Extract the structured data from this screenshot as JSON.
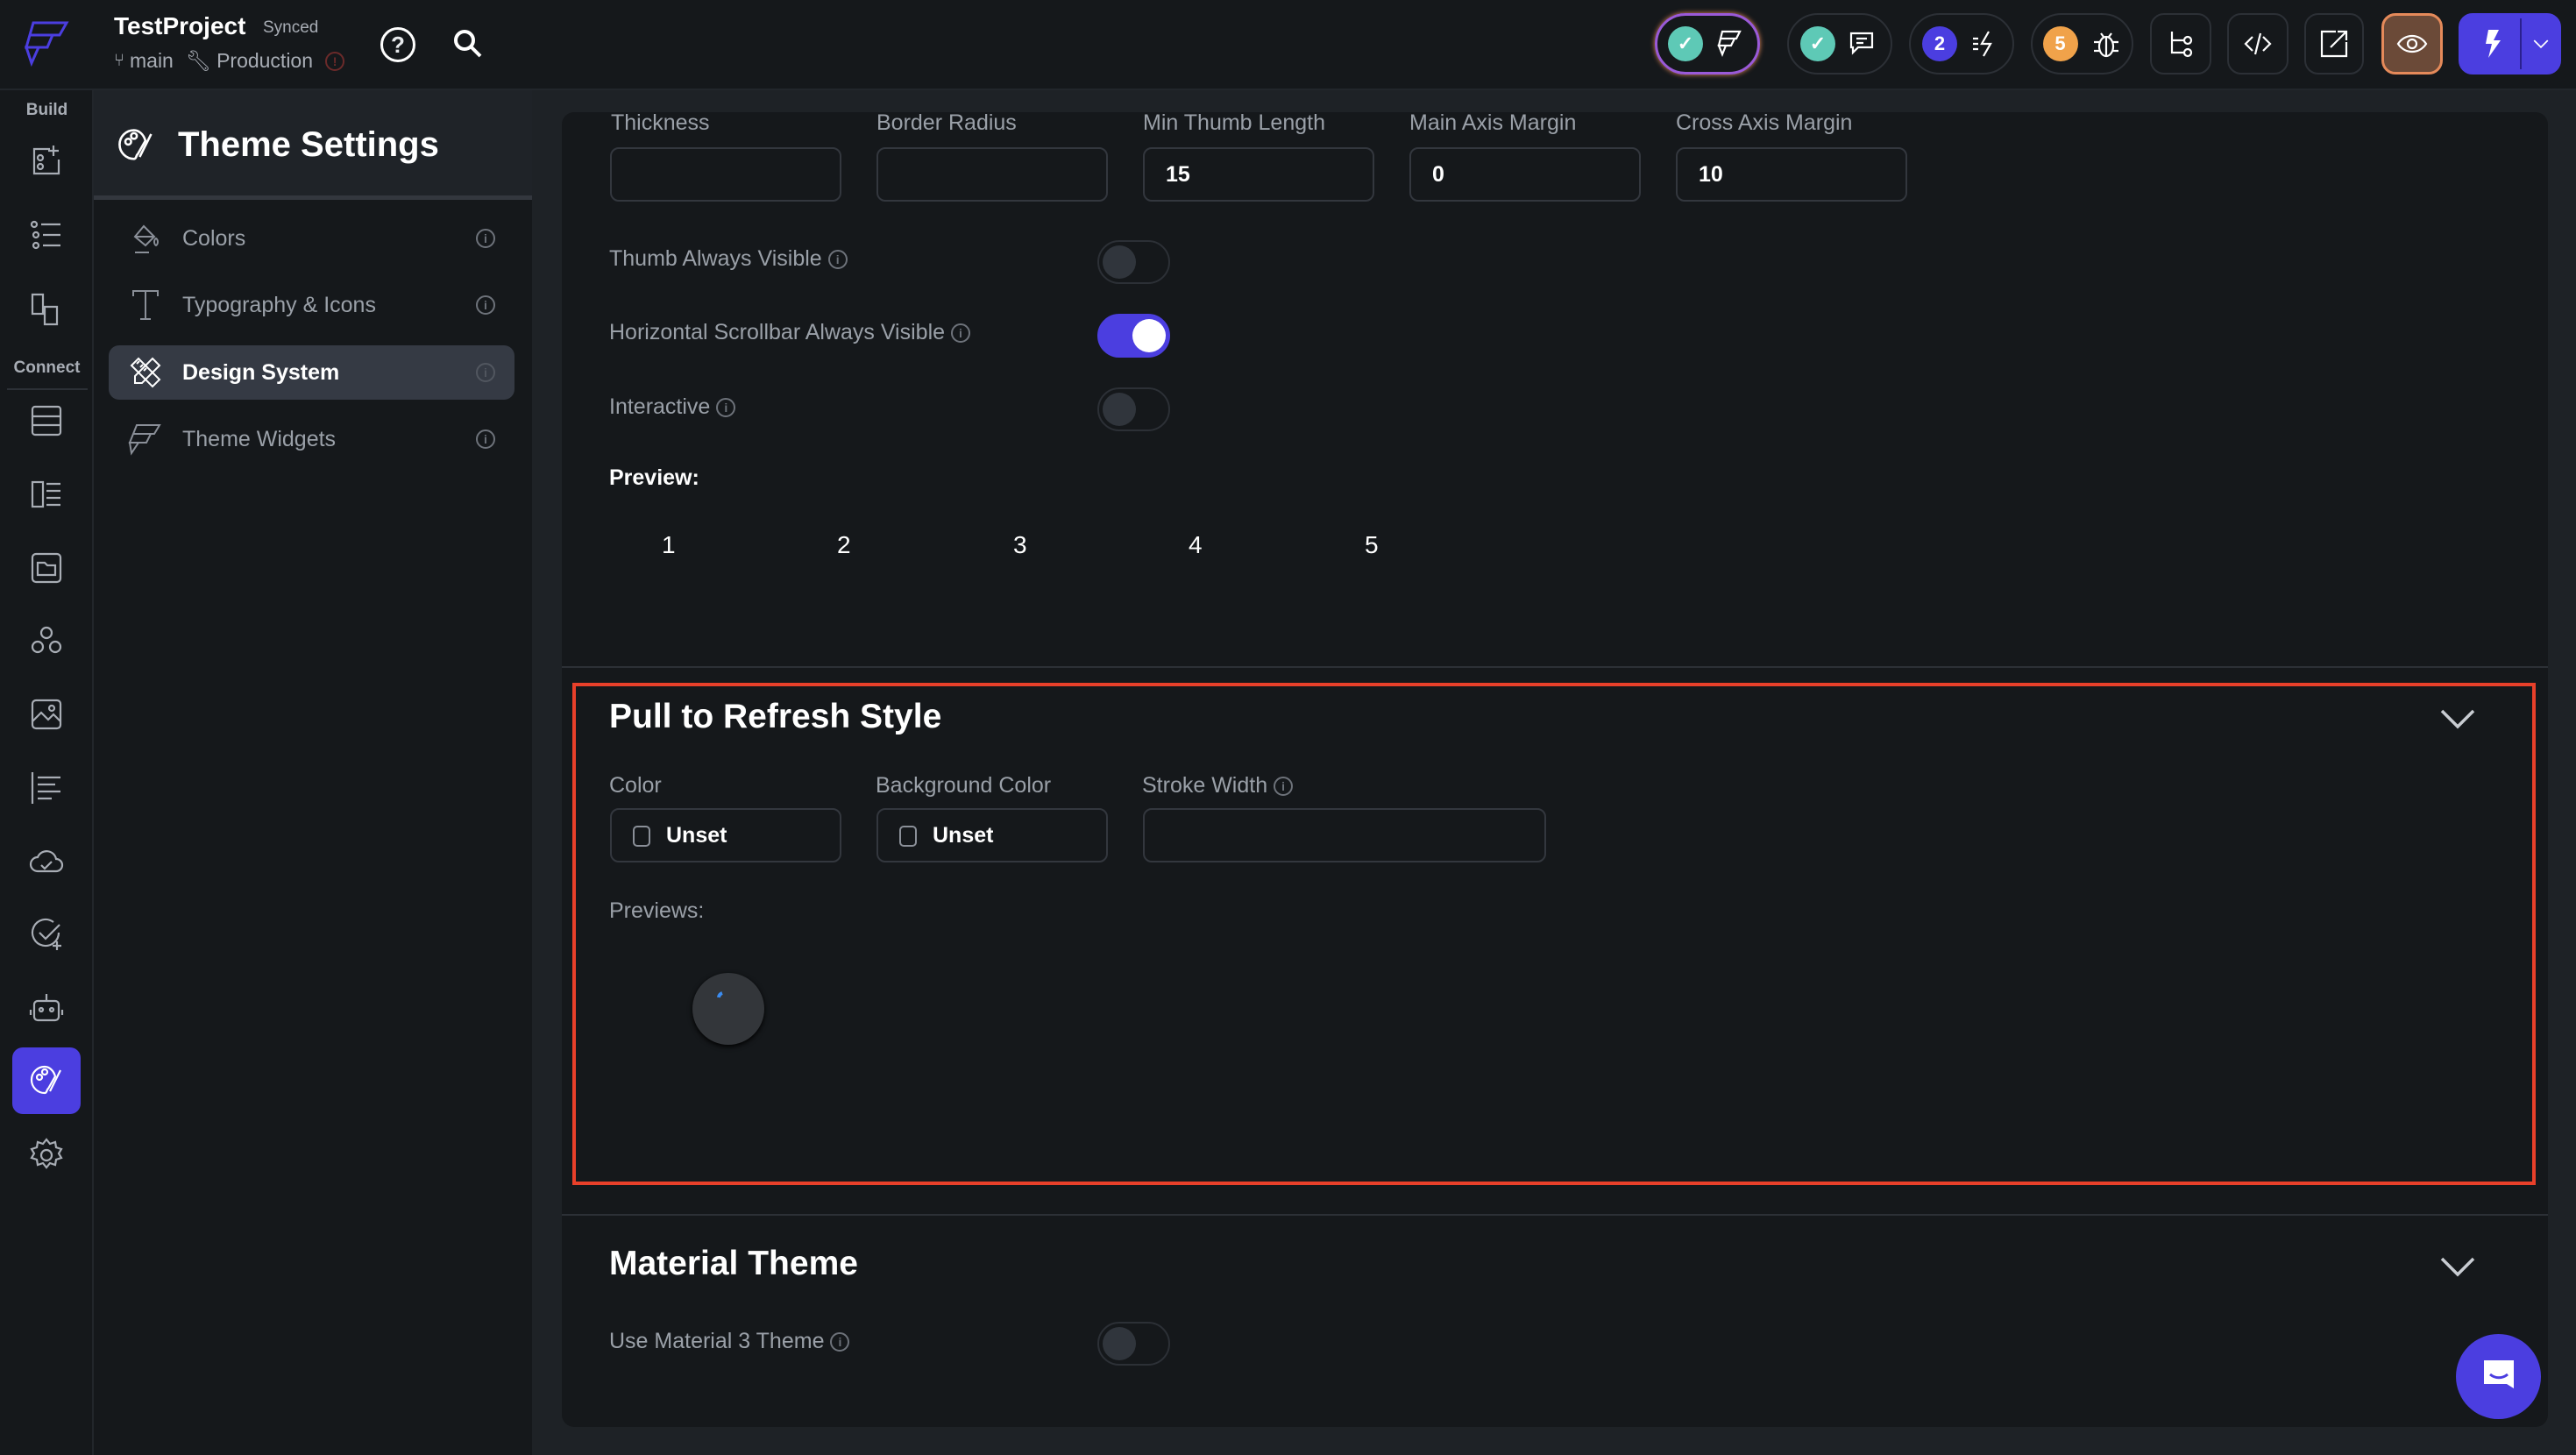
{
  "header": {
    "project": "TestProject",
    "sync_status": "Synced",
    "branch": "main",
    "environment": "Production",
    "badges": {
      "issues": "2",
      "bugs": "5"
    },
    "colors": {
      "accent": "#4b3ee0",
      "check": "#5ec9b6",
      "bug_badge": "#f0a24a",
      "preview_btn": "#6b4a38"
    }
  },
  "rail": {
    "build_label": "Build",
    "connect_label": "Connect"
  },
  "side": {
    "title": "Theme Settings",
    "items": [
      {
        "label": "Colors"
      },
      {
        "label": "Typography & Icons"
      },
      {
        "label": "Design System",
        "active": true
      },
      {
        "label": "Theme Widgets"
      }
    ]
  },
  "scrollbar": {
    "fields": [
      {
        "label": "Thickness",
        "value": ""
      },
      {
        "label": "Border Radius",
        "value": ""
      },
      {
        "label": "Min Thumb Length",
        "value": "15"
      },
      {
        "label": "Main Axis Margin",
        "value": "0"
      },
      {
        "label": "Cross Axis Margin",
        "value": "10"
      }
    ],
    "toggles": [
      {
        "label": "Thumb Always Visible",
        "on": false
      },
      {
        "label": "Horizontal Scrollbar Always Visible",
        "on": true
      },
      {
        "label": "Interactive",
        "on": false
      }
    ],
    "preview_label": "Preview:",
    "preview_items": [
      "1",
      "2",
      "3",
      "4",
      "5"
    ]
  },
  "pull_to_refresh": {
    "title": "Pull to Refresh Style",
    "color_label": "Color",
    "color_value": "Unset",
    "bg_label": "Background Color",
    "bg_value": "Unset",
    "stroke_label": "Stroke Width",
    "stroke_value": "",
    "previews_label": "Previews:",
    "highlight_color": "#e8402a"
  },
  "material": {
    "title": "Material Theme",
    "toggle_label": "Use Material 3 Theme",
    "on": false
  }
}
